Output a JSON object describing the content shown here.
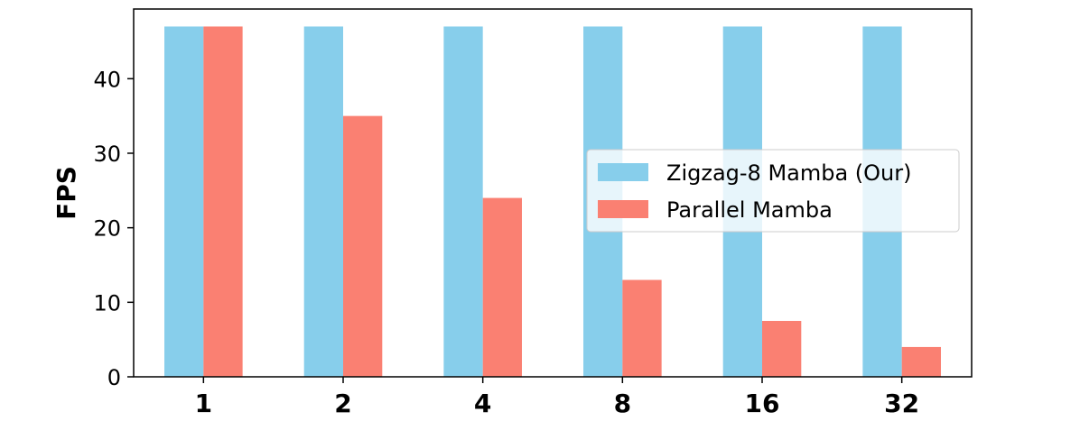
{
  "chart_data": {
    "type": "bar",
    "title": "",
    "xlabel": "",
    "ylabel": "FPS",
    "categories": [
      "1",
      "2",
      "4",
      "8",
      "16",
      "32"
    ],
    "series": [
      {
        "name": "Zigzag-8 Mamba (Our)",
        "color": "#87ceeb",
        "values": [
          47,
          47,
          47,
          47,
          47,
          47
        ]
      },
      {
        "name": "Parallel Mamba",
        "color": "#fa8072",
        "values": [
          47,
          35,
          24,
          13,
          7.5,
          4
        ]
      }
    ],
    "ylim": [
      0,
      49.35
    ],
    "yticks": [
      0,
      10,
      20,
      30,
      40
    ],
    "grid": false,
    "legend_position": "center-right"
  }
}
